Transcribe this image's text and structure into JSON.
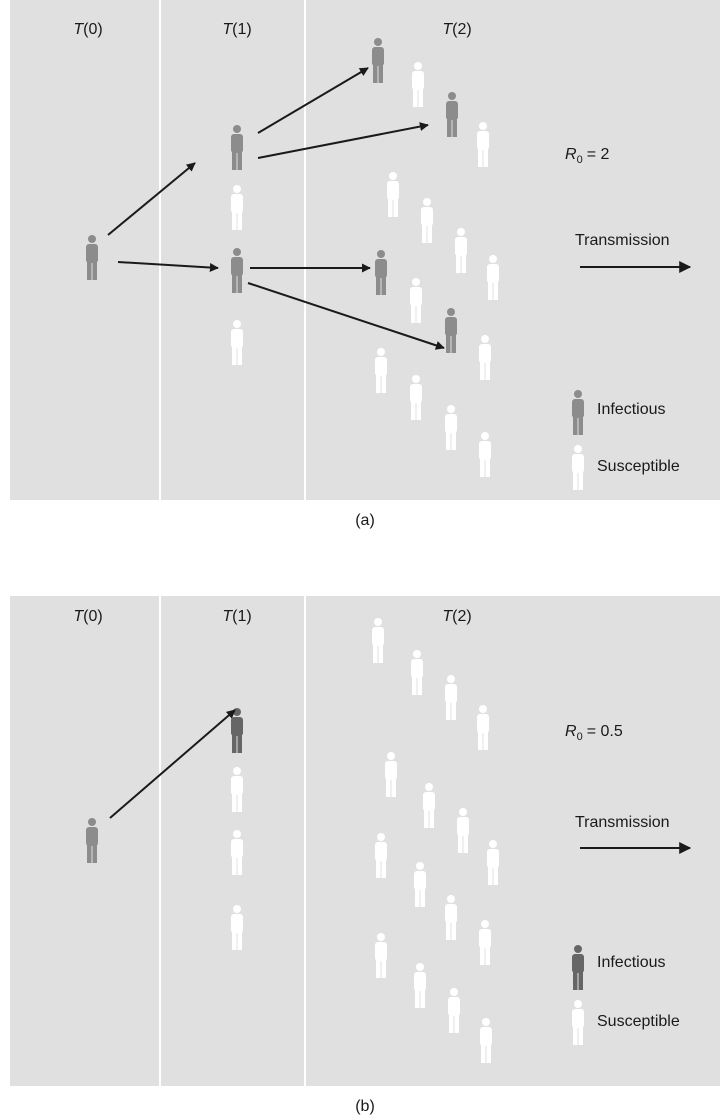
{
  "panels": [
    {
      "columns": [
        {
          "symbol": "T",
          "arg": "(0)"
        },
        {
          "symbol": "T",
          "arg": "(1)"
        },
        {
          "symbol": "T",
          "arg": "(2)"
        }
      ],
      "r0": {
        "symbol": "R",
        "subscript": "0",
        "value": "= 2"
      },
      "transmission": "Transmission",
      "legend": [
        "Infectious",
        "Susceptible"
      ],
      "caption": "(a)"
    },
    {
      "columns": [
        {
          "symbol": "T",
          "arg": "(0)"
        },
        {
          "symbol": "T",
          "arg": "(1)"
        },
        {
          "symbol": "T",
          "arg": "(2)"
        }
      ],
      "r0": {
        "symbol": "R",
        "subscript": "0",
        "value": "= 0.5"
      },
      "transmission": "Transmission",
      "legend": [
        "Infectious",
        "Susceptible"
      ],
      "caption": "(b)"
    }
  ]
}
